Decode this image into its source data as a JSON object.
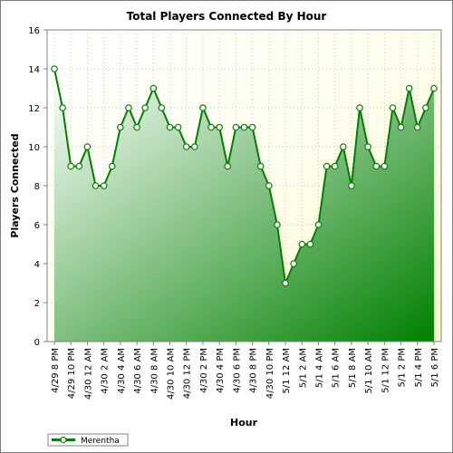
{
  "chart_data": {
    "type": "area",
    "title": "Total Players Connected By Hour",
    "xlabel": "Hour",
    "ylabel": "Players Connected",
    "ylim": [
      0,
      16
    ],
    "yticks": [
      0,
      2,
      4,
      6,
      8,
      10,
      12,
      14,
      16
    ],
    "grid": true,
    "legend_position": "bottom-left",
    "x_tick_labels": [
      "4/29 8 PM",
      "4/29 10 PM",
      "4/30 12 AM",
      "4/30 2 AM",
      "4/30 4 AM",
      "4/30 6 AM",
      "4/30 8 AM",
      "4/30 10 AM",
      "4/30 12 PM",
      "4/30 2 PM",
      "4/30 4 PM",
      "4/30 6 PM",
      "4/30 8 PM",
      "4/30 10 PM",
      "5/1 12 AM",
      "5/1 2 AM",
      "5/1 4 AM",
      "5/1 6 AM",
      "5/1 8 AM",
      "5/1 10 AM",
      "5/1 12 PM",
      "5/1 2 PM",
      "5/1 4 PM",
      "5/1 6 PM"
    ],
    "series": [
      {
        "name": "Merentha",
        "color": "#008000",
        "values": [
          14,
          12,
          9,
          9,
          10,
          8,
          8,
          9,
          11,
          12,
          11,
          12,
          13,
          12,
          11,
          11,
          10,
          10,
          12,
          11,
          11,
          9,
          11,
          11,
          11,
          9,
          8,
          6,
          3,
          4,
          5,
          5,
          6,
          9,
          9,
          10,
          8,
          12,
          10,
          9,
          9,
          12,
          11,
          13,
          11,
          12,
          13
        ]
      }
    ]
  }
}
